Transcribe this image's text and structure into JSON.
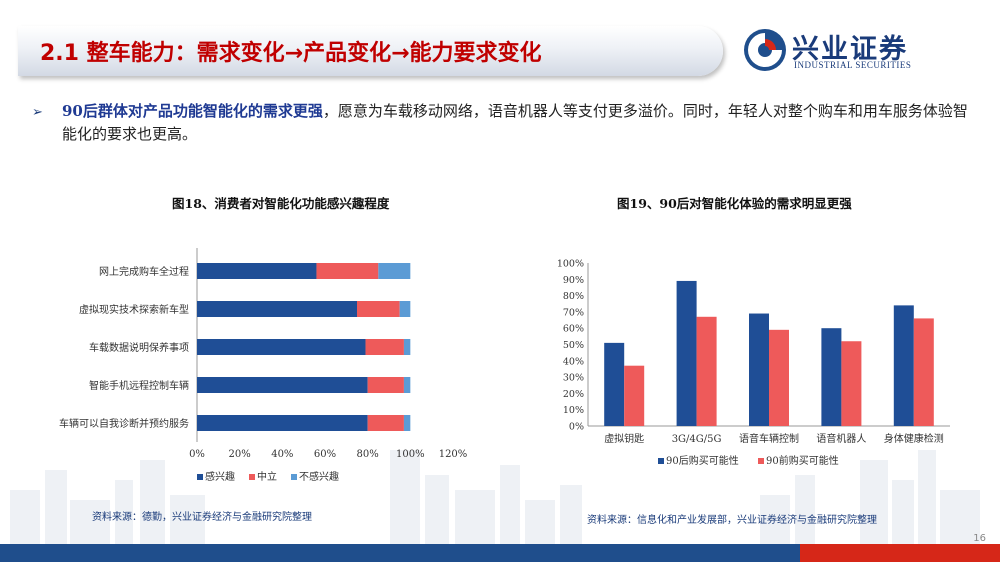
{
  "header": {
    "title": "2.1 整车能力：需求变化→产品变化→能力要求变化"
  },
  "brand": {
    "name": "兴业证券",
    "name_en": "INDUSTRIAL SECURITIES",
    "colors": {
      "primary": "#1f4e8c",
      "accent": "#d62718"
    }
  },
  "bullet": {
    "bold": "90后群体对产品功能智能化的需求更强",
    "rest": "，愿意为车载移动网络，语音机器人等支付更多溢价。同时，年轻人对整个购车和用车服务体验智能化的要求也更高。"
  },
  "charts": {
    "left": {
      "caption": "图18、消费者对智能化功能感兴趣程度",
      "source": "资料来源：德勤，兴业证券经济与金融研究院整理"
    },
    "right": {
      "caption": "图19、90后对智能化体验的需求明显更强",
      "source": "资料来源：信息化和产业发展部，兴业证券经济与金融研究院整理"
    }
  },
  "chart_data": [
    {
      "type": "bar",
      "orientation": "horizontal",
      "stacked": true,
      "categories": [
        "网上完成购车全过程",
        "虚拟现实技术探索新车型",
        "车载数据说明保养事项",
        "智能手机远程控制车辆",
        "车辆可以自我诊断并预约服务"
      ],
      "series": [
        {
          "name": "感兴趣",
          "color": "#1f4e96",
          "values": [
            56,
            75,
            79,
            80,
            80
          ]
        },
        {
          "name": "中立",
          "color": "#ee5a5a",
          "values": [
            29,
            20,
            18,
            17,
            17
          ]
        },
        {
          "name": "不感兴趣",
          "color": "#5b9bd5",
          "values": [
            15,
            5,
            3,
            3,
            3
          ]
        }
      ],
      "xlim": [
        0,
        120
      ],
      "xticks": [
        "0%",
        "20%",
        "40%",
        "60%",
        "80%",
        "100%",
        "120%"
      ],
      "legend": "bottom"
    },
    {
      "type": "bar",
      "categories": [
        "虚拟钥匙",
        "3G/4G/5G",
        "语音车辆控制",
        "语音机器人",
        "身体健康检测"
      ],
      "series": [
        {
          "name": "90后购买可能性",
          "color": "#1f4e96",
          "values": [
            51,
            89,
            69,
            60,
            74
          ]
        },
        {
          "name": "90前购买可能性",
          "color": "#ee5a5a",
          "values": [
            37,
            67,
            59,
            52,
            66
          ]
        }
      ],
      "ylim": [
        0,
        100
      ],
      "yticks": [
        "0%",
        "10%",
        "20%",
        "30%",
        "40%",
        "50%",
        "60%",
        "70%",
        "80%",
        "90%",
        "100%"
      ],
      "legend": "bottom"
    }
  ],
  "footer": {
    "page": "16"
  }
}
